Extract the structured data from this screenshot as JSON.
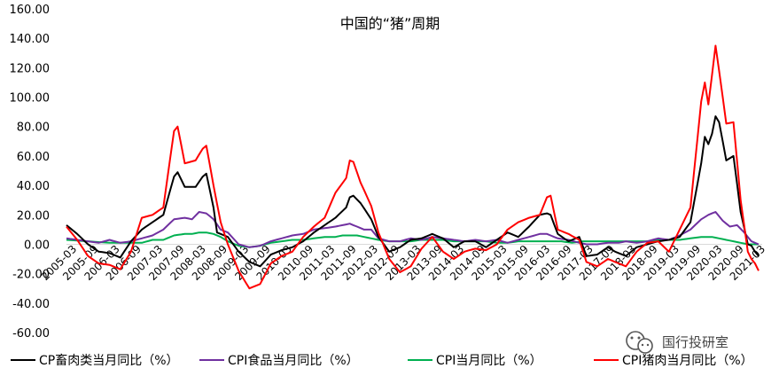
{
  "chart_data": {
    "type": "line",
    "title": "中国的“猪”周期",
    "ylim": [
      -60,
      160
    ],
    "yticks": [
      "160.00",
      "140.00",
      "120.00",
      "100.00",
      "80.00",
      "60.00",
      "40.00",
      "20.00",
      "0.00",
      "-20.00",
      "-40.00",
      "-60.00"
    ],
    "xticks": [
      "2005-03",
      "2005-09",
      "2006-03",
      "2006-09",
      "2007-03",
      "2007-09",
      "2008-03",
      "2008-09",
      "2009-03",
      "2009-09",
      "2010-03",
      "2010-09",
      "2011-03",
      "2011-09",
      "2012-03",
      "2012-09",
      "2013-03",
      "2013-09",
      "2014-03",
      "2014-09",
      "2015-03",
      "2015-09",
      "2016-03",
      "2016-09",
      "2017-03",
      "2017-09",
      "2018-03",
      "2018-09",
      "2019-03",
      "2019-09",
      "2020-03",
      "2020-09",
      "2021-03"
    ],
    "x_start": "2005-01",
    "series": [
      {
        "name": "CP畜肉类当月同比（%）",
        "color": "#000000",
        "keys": [
          [
            0,
            13
          ],
          [
            3,
            7
          ],
          [
            6,
            0
          ],
          [
            9,
            -5
          ],
          [
            12,
            -6
          ],
          [
            15,
            -9
          ],
          [
            18,
            2
          ],
          [
            21,
            10
          ],
          [
            24,
            15
          ],
          [
            27,
            20
          ],
          [
            30,
            46
          ],
          [
            31,
            49
          ],
          [
            33,
            39
          ],
          [
            36,
            39
          ],
          [
            38,
            46
          ],
          [
            39,
            48
          ],
          [
            41,
            25
          ],
          [
            42,
            8
          ],
          [
            45,
            5
          ],
          [
            48,
            -5
          ],
          [
            51,
            -12
          ],
          [
            54,
            -15
          ],
          [
            57,
            -7
          ],
          [
            60,
            -4
          ],
          [
            63,
            -2
          ],
          [
            66,
            2
          ],
          [
            69,
            8
          ],
          [
            72,
            13
          ],
          [
            75,
            18
          ],
          [
            78,
            25
          ],
          [
            79,
            32
          ],
          [
            80,
            33
          ],
          [
            82,
            28
          ],
          [
            85,
            17
          ],
          [
            87,
            5
          ],
          [
            90,
            -5
          ],
          [
            93,
            -2
          ],
          [
            96,
            3
          ],
          [
            99,
            4
          ],
          [
            102,
            7
          ],
          [
            105,
            4
          ],
          [
            108,
            -2
          ],
          [
            111,
            2
          ],
          [
            114,
            2
          ],
          [
            117,
            -2
          ],
          [
            120,
            3
          ],
          [
            123,
            8
          ],
          [
            126,
            5
          ],
          [
            129,
            12
          ],
          [
            132,
            20
          ],
          [
            134,
            21
          ],
          [
            135,
            20
          ],
          [
            137,
            7
          ],
          [
            140,
            2
          ],
          [
            143,
            5
          ],
          [
            145,
            -8
          ],
          [
            148,
            -7
          ],
          [
            151,
            -2
          ],
          [
            153,
            -5
          ],
          [
            156,
            -8
          ],
          [
            159,
            -2
          ],
          [
            162,
            0
          ],
          [
            165,
            2
          ],
          [
            168,
            3
          ],
          [
            171,
            5
          ],
          [
            174,
            15
          ],
          [
            177,
            55
          ],
          [
            178,
            73
          ],
          [
            179,
            68
          ],
          [
            180,
            75
          ],
          [
            181,
            87
          ],
          [
            182,
            83
          ],
          [
            183,
            70
          ],
          [
            184,
            57
          ],
          [
            186,
            60
          ],
          [
            188,
            22
          ],
          [
            190,
            0
          ],
          [
            191,
            -1
          ],
          [
            192,
            -5
          ],
          [
            193,
            -8
          ]
        ]
      },
      {
        "name": "CPI食品当月同比（%）",
        "color": "#7030a0",
        "keys": [
          [
            0,
            4
          ],
          [
            3,
            3
          ],
          [
            6,
            2
          ],
          [
            9,
            1
          ],
          [
            12,
            3
          ],
          [
            15,
            1
          ],
          [
            18,
            2
          ],
          [
            21,
            4
          ],
          [
            24,
            6
          ],
          [
            27,
            10
          ],
          [
            30,
            17
          ],
          [
            33,
            18
          ],
          [
            35,
            17
          ],
          [
            37,
            22
          ],
          [
            39,
            21
          ],
          [
            41,
            17
          ],
          [
            43,
            10
          ],
          [
            45,
            8
          ],
          [
            48,
            0
          ],
          [
            51,
            -2
          ],
          [
            54,
            -1
          ],
          [
            57,
            2
          ],
          [
            60,
            4
          ],
          [
            63,
            6
          ],
          [
            66,
            7
          ],
          [
            69,
            10
          ],
          [
            72,
            11
          ],
          [
            75,
            12
          ],
          [
            77,
            13
          ],
          [
            79,
            14
          ],
          [
            81,
            12
          ],
          [
            83,
            10
          ],
          [
            85,
            10
          ],
          [
            87,
            4
          ],
          [
            90,
            2
          ],
          [
            93,
            2
          ],
          [
            96,
            4
          ],
          [
            99,
            3
          ],
          [
            102,
            5
          ],
          [
            105,
            4
          ],
          [
            108,
            3
          ],
          [
            111,
            2
          ],
          [
            114,
            3
          ],
          [
            117,
            2
          ],
          [
            120,
            3
          ],
          [
            123,
            1
          ],
          [
            126,
            3
          ],
          [
            129,
            5
          ],
          [
            132,
            7
          ],
          [
            134,
            7
          ],
          [
            135,
            6
          ],
          [
            137,
            4
          ],
          [
            140,
            3
          ],
          [
            143,
            1
          ],
          [
            145,
            0
          ],
          [
            148,
            0
          ],
          [
            151,
            1
          ],
          [
            154,
            1
          ],
          [
            156,
            2
          ],
          [
            159,
            1
          ],
          [
            162,
            2
          ],
          [
            165,
            4
          ],
          [
            168,
            3
          ],
          [
            171,
            6
          ],
          [
            174,
            10
          ],
          [
            177,
            17
          ],
          [
            179,
            20
          ],
          [
            181,
            22
          ],
          [
            183,
            16
          ],
          [
            185,
            12
          ],
          [
            187,
            13
          ],
          [
            189,
            8
          ],
          [
            191,
            2
          ],
          [
            193,
            0
          ]
        ]
      },
      {
        "name": "CPI当月同比（%）",
        "color": "#00b050",
        "keys": [
          [
            0,
            3
          ],
          [
            6,
            2
          ],
          [
            12,
            1
          ],
          [
            18,
            1
          ],
          [
            21,
            1
          ],
          [
            24,
            3
          ],
          [
            27,
            3
          ],
          [
            30,
            6
          ],
          [
            33,
            7
          ],
          [
            35,
            7
          ],
          [
            37,
            8
          ],
          [
            39,
            8
          ],
          [
            41,
            7
          ],
          [
            43,
            5
          ],
          [
            45,
            2
          ],
          [
            48,
            -1
          ],
          [
            51,
            -2
          ],
          [
            54,
            -1
          ],
          [
            57,
            1
          ],
          [
            60,
            2
          ],
          [
            63,
            3
          ],
          [
            66,
            3
          ],
          [
            69,
            4
          ],
          [
            72,
            5
          ],
          [
            75,
            5
          ],
          [
            77,
            6
          ],
          [
            79,
            6
          ],
          [
            81,
            6
          ],
          [
            83,
            5
          ],
          [
            85,
            4
          ],
          [
            87,
            3
          ],
          [
            90,
            2
          ],
          [
            93,
            2
          ],
          [
            96,
            2
          ],
          [
            99,
            3
          ],
          [
            102,
            3
          ],
          [
            105,
            3
          ],
          [
            108,
            2
          ],
          [
            111,
            2
          ],
          [
            114,
            2
          ],
          [
            117,
            2
          ],
          [
            120,
            1
          ],
          [
            123,
            1
          ],
          [
            126,
            2
          ],
          [
            129,
            2
          ],
          [
            132,
            2
          ],
          [
            135,
            2
          ],
          [
            138,
            2
          ],
          [
            141,
            1
          ],
          [
            144,
            2
          ],
          [
            147,
            2
          ],
          [
            150,
            2
          ],
          [
            153,
            2
          ],
          [
            156,
            2
          ],
          [
            159,
            2
          ],
          [
            162,
            2
          ],
          [
            165,
            3
          ],
          [
            168,
            3
          ],
          [
            171,
            3
          ],
          [
            174,
            4
          ],
          [
            177,
            5
          ],
          [
            180,
            5
          ],
          [
            182,
            4
          ],
          [
            184,
            3
          ],
          [
            186,
            2
          ],
          [
            188,
            1
          ],
          [
            190,
            0
          ],
          [
            192,
            0
          ],
          [
            193,
            0
          ]
        ]
      },
      {
        "name": "CPI猪肉当月同比（%）",
        "color": "#ff0000",
        "keys": [
          [
            0,
            12
          ],
          [
            3,
            3
          ],
          [
            6,
            -8
          ],
          [
            9,
            -13
          ],
          [
            12,
            -14
          ],
          [
            15,
            -17
          ],
          [
            18,
            -5
          ],
          [
            21,
            18
          ],
          [
            24,
            20
          ],
          [
            27,
            25
          ],
          [
            30,
            77
          ],
          [
            31,
            80
          ],
          [
            33,
            55
          ],
          [
            36,
            57
          ],
          [
            38,
            65
          ],
          [
            39,
            67
          ],
          [
            41,
            40
          ],
          [
            43,
            15
          ],
          [
            45,
            0
          ],
          [
            48,
            -18
          ],
          [
            51,
            -30
          ],
          [
            54,
            -27
          ],
          [
            57,
            -13
          ],
          [
            60,
            -8
          ],
          [
            63,
            -5
          ],
          [
            66,
            5
          ],
          [
            69,
            12
          ],
          [
            72,
            18
          ],
          [
            75,
            35
          ],
          [
            78,
            45
          ],
          [
            79,
            57
          ],
          [
            80,
            56
          ],
          [
            82,
            42
          ],
          [
            85,
            26
          ],
          [
            87,
            8
          ],
          [
            90,
            -10
          ],
          [
            93,
            -19
          ],
          [
            96,
            -15
          ],
          [
            99,
            -3
          ],
          [
            102,
            5
          ],
          [
            105,
            -5
          ],
          [
            108,
            -10
          ],
          [
            111,
            -5
          ],
          [
            114,
            -3
          ],
          [
            117,
            -4
          ],
          [
            120,
            0
          ],
          [
            123,
            10
          ],
          [
            126,
            15
          ],
          [
            129,
            18
          ],
          [
            132,
            20
          ],
          [
            134,
            32
          ],
          [
            135,
            33
          ],
          [
            137,
            10
          ],
          [
            140,
            7
          ],
          [
            143,
            3
          ],
          [
            145,
            -12
          ],
          [
            148,
            -15
          ],
          [
            151,
            -10
          ],
          [
            153,
            -12
          ],
          [
            156,
            -15
          ],
          [
            159,
            -5
          ],
          [
            162,
            1
          ],
          [
            165,
            2
          ],
          [
            168,
            -5
          ],
          [
            171,
            10
          ],
          [
            174,
            25
          ],
          [
            177,
            97
          ],
          [
            178,
            110
          ],
          [
            179,
            95
          ],
          [
            180,
            115
          ],
          [
            181,
            135
          ],
          [
            182,
            118
          ],
          [
            183,
            100
          ],
          [
            184,
            82
          ],
          [
            186,
            83
          ],
          [
            188,
            30
          ],
          [
            190,
            -5
          ],
          [
            191,
            -10
          ],
          [
            192,
            -13
          ],
          [
            193,
            -18
          ]
        ]
      }
    ]
  },
  "watermark": {
    "text": "国行投研室",
    "icon": "wechat-icon"
  }
}
